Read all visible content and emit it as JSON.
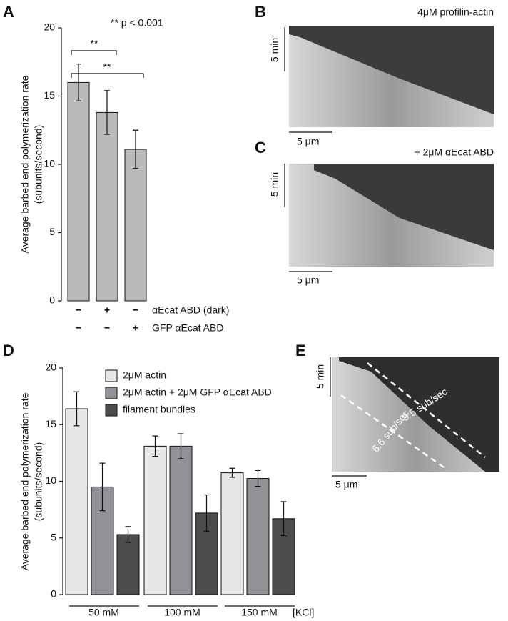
{
  "chart_data": [
    {
      "panel": "A",
      "type": "bar",
      "annotation": "** p < 0.001",
      "ylabel": [
        "Average barbed end polymerization rate",
        "(subunits/second)"
      ],
      "values": [
        16.0,
        13.8,
        11.1
      ],
      "errors": [
        1.35,
        1.6,
        1.4
      ],
      "color": "#b9babc",
      "ylim": [
        0,
        20
      ],
      "yticks": [
        0,
        5,
        10,
        15,
        20
      ],
      "significance": [
        "**",
        "**"
      ],
      "conditions": [
        {
          "label": "αEcat ABD (dark)",
          "marks": [
            "−",
            "+",
            "−"
          ]
        },
        {
          "label": "GFP αEcat ABD",
          "marks": [
            "−",
            "−",
            "+"
          ]
        }
      ]
    },
    {
      "panel": "D",
      "type": "grouped_bar",
      "ylabel": [
        "Average barbed end polymerization rate",
        "(subunits/second)"
      ],
      "categories": [
        "50 mM",
        "100 mM",
        "150 mM"
      ],
      "x_unit": "[KCl]",
      "ylim": [
        0,
        20
      ],
      "yticks": [
        0,
        5,
        10,
        15,
        20
      ],
      "series": [
        {
          "name": "2μM actin",
          "color": "#e6e7e9",
          "values": [
            16.4,
            13.1,
            10.75
          ],
          "errors": [
            1.5,
            0.9,
            0.4
          ]
        },
        {
          "name": "2μM actin + 2μM GFP αEcat ABD",
          "color": "#909295",
          "values": [
            9.5,
            13.1,
            10.25
          ],
          "errors": [
            2.1,
            1.1,
            0.7
          ]
        },
        {
          "name": "filament bundles",
          "color": "#4b4c4e",
          "values": [
            5.3,
            7.2,
            6.7
          ],
          "errors": [
            0.7,
            1.6,
            1.5
          ]
        }
      ]
    }
  ],
  "images": [
    {
      "panel": "B",
      "title": "4μM profilin-actin",
      "time_scale": "5 min",
      "length_scale": "5 μm"
    },
    {
      "panel": "C",
      "title": "+ 2μM αEcat ABD",
      "time_scale": "5 min",
      "length_scale": "5 μm"
    },
    {
      "panel": "E",
      "time_scale": "5 min",
      "length_scale": "5 μm",
      "rates": [
        "9.5 sub/sec",
        "6.6 sub/sec"
      ]
    }
  ]
}
